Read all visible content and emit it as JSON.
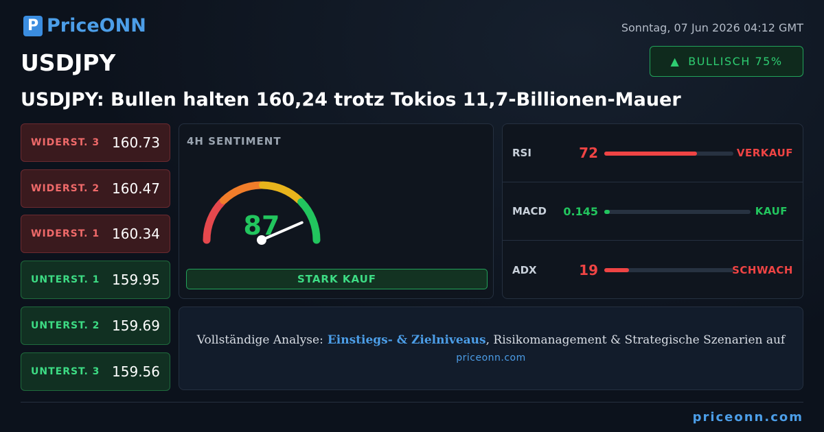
{
  "header": {
    "logo": "PriceONN",
    "symbol": "USDJPY",
    "date": "Sonntag, 07 Jun 2026 04:12 GMT",
    "badge": "BULLISCH 75%"
  },
  "headline": "USDJPY: Bullen halten 160,24 trotz Tokios 11,7-Billionen-Mauer",
  "resistance": [
    {
      "label": "WIDERST. 3",
      "value": "160.73"
    },
    {
      "label": "WIDERST. 2",
      "value": "160.47"
    },
    {
      "label": "WIDERST. 1",
      "value": "160.34"
    }
  ],
  "support": [
    {
      "label": "UNTERST. 1",
      "value": "159.95"
    },
    {
      "label": "UNTERST. 2",
      "value": "159.69"
    },
    {
      "label": "UNTERST. 3",
      "value": "159.56"
    }
  ],
  "gauge": {
    "label": "4H SENTIMENT",
    "value": 87,
    "range": [
      0,
      100
    ],
    "verdict": "STARK KAUF"
  },
  "indicators": [
    {
      "name": "RSI",
      "value": 72,
      "range": [
        0,
        100
      ],
      "signal": "VERKAUF",
      "color": "#ef4444"
    },
    {
      "name": "MACD",
      "value": 0.145,
      "range": [
        0,
        5
      ],
      "signal": "KAUF",
      "color": "#22c55e"
    },
    {
      "name": "ADX",
      "value": 19,
      "range": [
        0,
        100
      ],
      "signal": "SCHWACH",
      "color": "#ef4444"
    }
  ],
  "cta": {
    "text_before": "Vollständige Analyse:",
    "link": "Einstiegs- & Zielniveaus",
    "text_after": ", Risikomanagement & Strategische Szenarien auf",
    "url": "priceonn.com"
  },
  "footer": "priceonn.com"
}
